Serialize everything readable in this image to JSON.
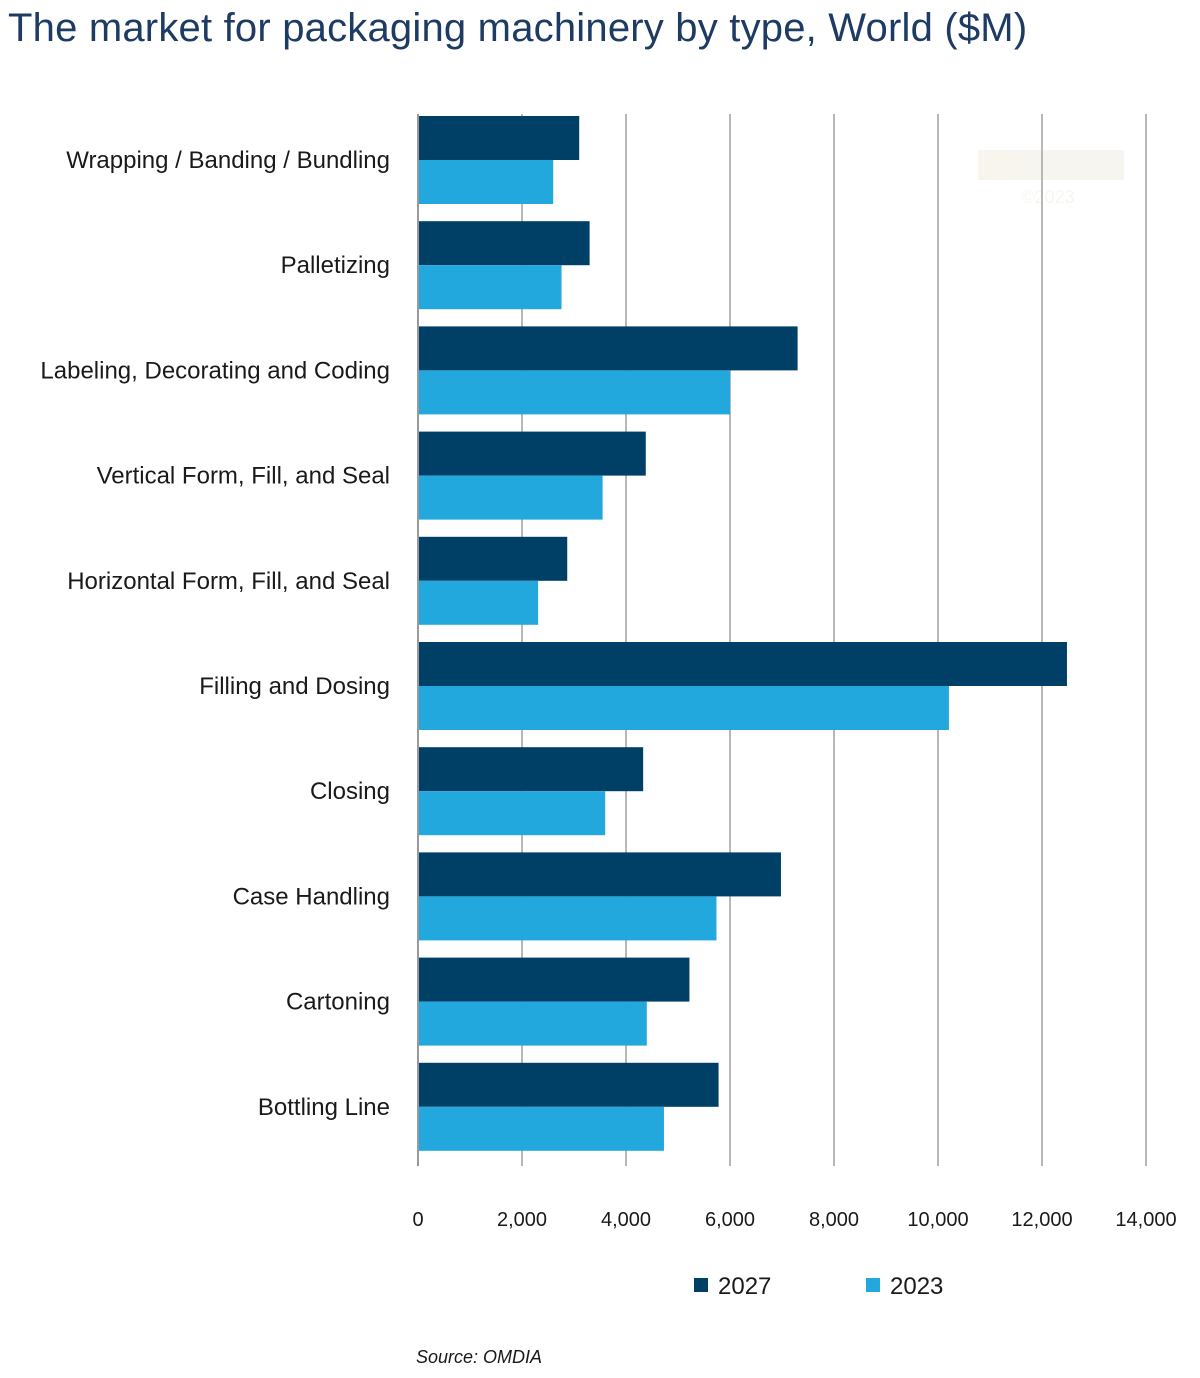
{
  "title": "The market for packaging machinery by type, World ($M)",
  "source": "Source: OMDIA",
  "watermark": {
    "logo": "PMMI",
    "text": "©2023"
  },
  "colors": {
    "series_2027": "#003f66",
    "series_2023": "#22a8dc",
    "grid": "#b8b8b8",
    "title": "#1d3b63"
  },
  "chart_data": {
    "type": "bar",
    "orientation": "horizontal",
    "title": "The market for packaging machinery by type, World ($M)",
    "categories": [
      "Wrapping / Banding / Bundling",
      "Palletizing",
      "Labeling, Decorating and Coding",
      "Vertical Form, Fill, and Seal",
      "Horizontal Form, Fill, and Seal",
      "Filling and Dosing",
      "Closing",
      "Case Handling",
      "Cartoning",
      "Bottling Line"
    ],
    "series": [
      {
        "name": "2027",
        "values": [
          3100,
          3300,
          7300,
          4380,
          2870,
          12480,
          4330,
          6980,
          5220,
          5780
        ]
      },
      {
        "name": "2023",
        "values": [
          2600,
          2760,
          6000,
          3550,
          2310,
          10210,
          3600,
          5740,
          4400,
          4730
        ]
      }
    ],
    "xlim": [
      0,
      14000
    ],
    "xticks": [
      0,
      2000,
      4000,
      6000,
      8000,
      10000,
      12000,
      14000
    ],
    "xtick_labels": [
      "0",
      "2,000",
      "4,000",
      "6,000",
      "8,000",
      "10,000",
      "12,000",
      "14,000"
    ],
    "xlabel": "",
    "ylabel": "",
    "grid": "vertical",
    "legend": "bottom"
  }
}
